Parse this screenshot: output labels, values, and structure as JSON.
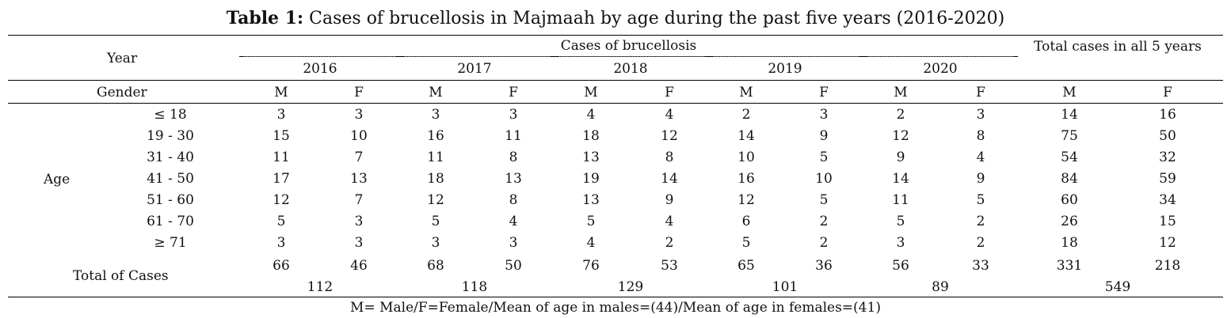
{
  "table": {
    "title_bold": "Table 1:",
    "title_rest": " Cases of brucellosis in Majmaah by age during the past five years (2016-2020)",
    "header": {
      "year_label": "Year",
      "cases_label": "Cases of brucellosis",
      "years": [
        "2016",
        "2017",
        "2018",
        "2019",
        "2020"
      ],
      "total_label": "Total cases in all 5 years",
      "gender_label": "Gender",
      "male": "M",
      "female": "F"
    },
    "age_label": "Age",
    "rows": [
      {
        "age": "≤ 18",
        "values": [
          "3",
          "3",
          "3",
          "3",
          "4",
          "4",
          "2",
          "3",
          "2",
          "3",
          "14",
          "16"
        ]
      },
      {
        "age": "19 - 30",
        "values": [
          "15",
          "10",
          "16",
          "11",
          "18",
          "12",
          "14",
          "9",
          "12",
          "8",
          "75",
          "50"
        ]
      },
      {
        "age": "31 - 40",
        "values": [
          "11",
          "7",
          "11",
          "8",
          "13",
          "8",
          "10",
          "5",
          "9",
          "4",
          "54",
          "32"
        ]
      },
      {
        "age": "41 - 50",
        "values": [
          "17",
          "13",
          "18",
          "13",
          "19",
          "14",
          "16",
          "10",
          "14",
          "9",
          "84",
          "59"
        ]
      },
      {
        "age": "51 - 60",
        "values": [
          "12",
          "7",
          "12",
          "8",
          "13",
          "9",
          "12",
          "5",
          "11",
          "5",
          "60",
          "34"
        ]
      },
      {
        "age": "61 - 70",
        "values": [
          "5",
          "3",
          "5",
          "4",
          "5",
          "4",
          "6",
          "2",
          "5",
          "2",
          "26",
          "15"
        ]
      },
      {
        "age": "≥ 71",
        "values": [
          "3",
          "3",
          "3",
          "3",
          "4",
          "2",
          "5",
          "2",
          "3",
          "2",
          "18",
          "12"
        ]
      }
    ],
    "totals": {
      "label": "Total of Cases",
      "values": [
        "66",
        "46",
        "68",
        "50",
        "76",
        "53",
        "65",
        "36",
        "56",
        "33",
        "331",
        "218"
      ],
      "sums": [
        "112",
        "118",
        "129",
        "101",
        "89",
        "549"
      ]
    },
    "footnote": "M= Male/F=Female/Mean of age in males=(44)/Mean of age in females=(41)"
  }
}
